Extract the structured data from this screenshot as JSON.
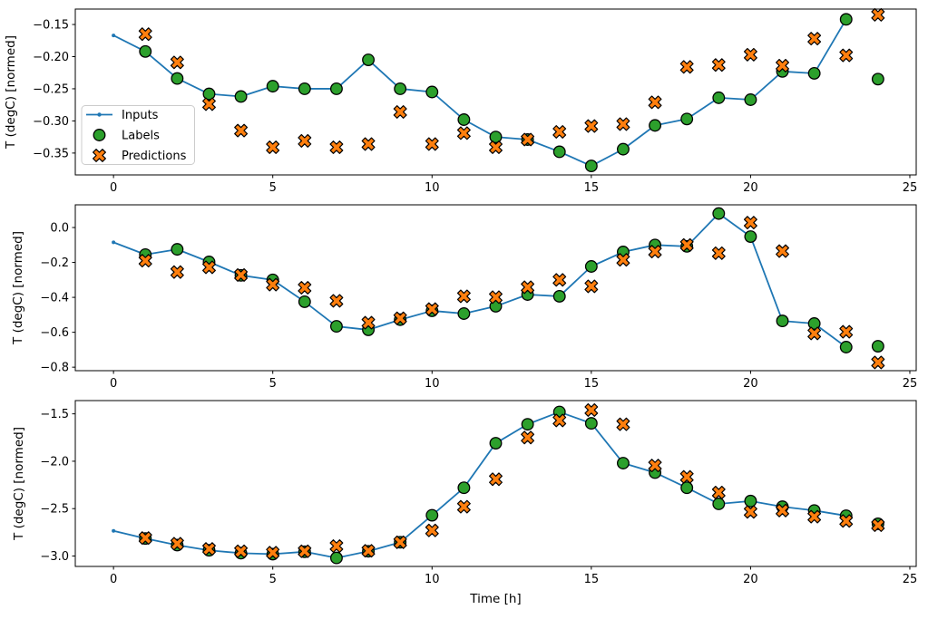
{
  "figure": {
    "background": "#ffffff",
    "xlabel": "Time [h]",
    "xticks": [
      0,
      5,
      10,
      15,
      20,
      25
    ],
    "xticklabels": [
      "0",
      "5",
      "10",
      "15",
      "20",
      "25"
    ],
    "colors": {
      "inputs": "#1f77b4",
      "labels": "#2ca02c",
      "predictions": "#ff7f0e",
      "marker_edge": "#000000",
      "axis": "#000000",
      "text": "#000000"
    },
    "legend": {
      "border_color": "#cccccc",
      "position": "center-left-of-first-subplot",
      "items": [
        {
          "label": "Inputs",
          "marker": "line-with-dot",
          "color": "#1f77b4"
        },
        {
          "label": "Labels",
          "marker": "filled-circle",
          "color": "#2ca02c"
        },
        {
          "label": "Predictions",
          "marker": "filled-x",
          "color": "#ff7f0e"
        }
      ]
    }
  },
  "chart_data": [
    {
      "type": "line",
      "title": "",
      "ylabel": "T (degC) [normed]",
      "xlim": [
        -1.2,
        25.2
      ],
      "ylim": [
        -0.384,
        -0.126
      ],
      "grid": false,
      "show_legend": true,
      "yticks": [
        -0.15,
        -0.2,
        -0.25,
        -0.3,
        -0.35
      ],
      "yticklabels": [
        "−0.15",
        "−0.20",
        "−0.25",
        "−0.30",
        "−0.35"
      ],
      "series": [
        {
          "name": "Inputs",
          "type": "line",
          "x": [
            0,
            1,
            2,
            3,
            4,
            5,
            6,
            7,
            8,
            9,
            10,
            11,
            12,
            13,
            14,
            15,
            16,
            17,
            18,
            19,
            20,
            21,
            22,
            23
          ],
          "y": [
            -0.167,
            -0.192,
            -0.234,
            -0.258,
            -0.262,
            -0.246,
            -0.25,
            -0.25,
            -0.205,
            -0.25,
            -0.255,
            -0.298,
            -0.325,
            -0.329,
            -0.348,
            -0.37,
            -0.344,
            -0.307,
            -0.297,
            -0.264,
            -0.267,
            -0.223,
            -0.226,
            -0.142
          ]
        },
        {
          "name": "Labels",
          "type": "scatter",
          "marker": "circle",
          "x": [
            1,
            2,
            3,
            4,
            5,
            6,
            7,
            8,
            9,
            10,
            11,
            12,
            13,
            14,
            15,
            16,
            17,
            18,
            19,
            20,
            21,
            22,
            23,
            24
          ],
          "y": [
            -0.192,
            -0.234,
            -0.258,
            -0.262,
            -0.246,
            -0.25,
            -0.25,
            -0.205,
            -0.25,
            -0.255,
            -0.298,
            -0.325,
            -0.329,
            -0.348,
            -0.37,
            -0.344,
            -0.307,
            -0.297,
            -0.264,
            -0.267,
            -0.223,
            -0.226,
            -0.142,
            -0.235
          ]
        },
        {
          "name": "Predictions",
          "type": "scatter",
          "marker": "X",
          "x": [
            1,
            2,
            3,
            4,
            5,
            6,
            7,
            8,
            9,
            10,
            11,
            12,
            13,
            14,
            15,
            16,
            17,
            18,
            19,
            20,
            21,
            22,
            23,
            24
          ],
          "y": [
            -0.165,
            -0.209,
            -0.274,
            -0.315,
            -0.341,
            -0.331,
            -0.341,
            -0.336,
            -0.286,
            -0.336,
            -0.319,
            -0.341,
            -0.329,
            -0.317,
            -0.308,
            -0.305,
            -0.271,
            -0.216,
            -0.213,
            -0.197,
            -0.214,
            -0.172,
            -0.198,
            -0.135
          ]
        }
      ]
    },
    {
      "type": "line",
      "title": "",
      "ylabel": "T (degC) [normed]",
      "xlim": [
        -1.2,
        25.2
      ],
      "ylim": [
        -0.82,
        0.13
      ],
      "grid": false,
      "show_legend": false,
      "yticks": [
        0.0,
        -0.2,
        -0.4,
        -0.6,
        -0.8
      ],
      "yticklabels": [
        "0.0",
        "−0.2",
        "−0.4",
        "−0.6",
        "−0.8"
      ],
      "series": [
        {
          "name": "Inputs",
          "type": "line",
          "x": [
            0,
            1,
            2,
            3,
            4,
            5,
            6,
            7,
            8,
            9,
            10,
            11,
            12,
            13,
            14,
            15,
            16,
            17,
            18,
            19,
            20,
            21,
            22,
            23
          ],
          "y": [
            -0.085,
            -0.155,
            -0.125,
            -0.197,
            -0.274,
            -0.3,
            -0.425,
            -0.566,
            -0.586,
            -0.528,
            -0.477,
            -0.493,
            -0.451,
            -0.384,
            -0.394,
            -0.223,
            -0.14,
            -0.1,
            -0.108,
            0.08,
            -0.052,
            -0.535,
            -0.55,
            -0.685
          ]
        },
        {
          "name": "Labels",
          "type": "scatter",
          "marker": "circle",
          "x": [
            1,
            2,
            3,
            4,
            5,
            6,
            7,
            8,
            9,
            10,
            11,
            12,
            13,
            14,
            15,
            16,
            17,
            18,
            19,
            20,
            21,
            22,
            23,
            24
          ],
          "y": [
            -0.155,
            -0.125,
            -0.197,
            -0.274,
            -0.3,
            -0.425,
            -0.566,
            -0.586,
            -0.528,
            -0.477,
            -0.493,
            -0.451,
            -0.384,
            -0.394,
            -0.223,
            -0.14,
            -0.1,
            -0.108,
            0.08,
            -0.052,
            -0.535,
            -0.55,
            -0.685,
            -0.68
          ]
        },
        {
          "name": "Predictions",
          "type": "scatter",
          "marker": "X",
          "x": [
            1,
            2,
            3,
            4,
            5,
            6,
            7,
            8,
            9,
            10,
            11,
            12,
            13,
            14,
            15,
            16,
            17,
            18,
            19,
            20,
            21,
            22,
            23,
            24
          ],
          "y": [
            -0.19,
            -0.255,
            -0.228,
            -0.272,
            -0.327,
            -0.345,
            -0.42,
            -0.545,
            -0.52,
            -0.467,
            -0.394,
            -0.399,
            -0.342,
            -0.3,
            -0.337,
            -0.185,
            -0.138,
            -0.1,
            -0.147,
            0.028,
            -0.135,
            -0.607,
            -0.597,
            -0.773
          ]
        }
      ]
    },
    {
      "type": "line",
      "title": "",
      "ylabel": "T (degC) [normed]",
      "xlabel": "Time [h]",
      "xlim": [
        -1.2,
        25.2
      ],
      "ylim": [
        -3.11,
        -1.36
      ],
      "grid": false,
      "show_legend": false,
      "yticks": [
        -1.5,
        -2.0,
        -2.5,
        -3.0
      ],
      "yticklabels": [
        "−1.5",
        "−2.0",
        "−2.5",
        "−3.0"
      ],
      "series": [
        {
          "name": "Inputs",
          "type": "line",
          "x": [
            0,
            1,
            2,
            3,
            4,
            5,
            6,
            7,
            8,
            9,
            10,
            11,
            12,
            13,
            14,
            15,
            16,
            17,
            18,
            19,
            20,
            21,
            22,
            23
          ],
          "y": [
            -2.735,
            -2.815,
            -2.885,
            -2.94,
            -2.97,
            -2.98,
            -2.955,
            -3.02,
            -2.95,
            -2.855,
            -2.57,
            -2.28,
            -1.81,
            -1.61,
            -1.48,
            -1.6,
            -2.02,
            -2.12,
            -2.28,
            -2.45,
            -2.42,
            -2.48,
            -2.52,
            -2.575
          ]
        },
        {
          "name": "Labels",
          "type": "scatter",
          "marker": "circle",
          "x": [
            1,
            2,
            3,
            4,
            5,
            6,
            7,
            8,
            9,
            10,
            11,
            12,
            13,
            14,
            15,
            16,
            17,
            18,
            19,
            20,
            21,
            22,
            23,
            24
          ],
          "y": [
            -2.815,
            -2.885,
            -2.94,
            -2.97,
            -2.98,
            -2.955,
            -3.02,
            -2.95,
            -2.855,
            -2.57,
            -2.28,
            -1.81,
            -1.61,
            -1.48,
            -1.6,
            -2.02,
            -2.12,
            -2.28,
            -2.45,
            -2.42,
            -2.48,
            -2.52,
            -2.575,
            -2.66
          ]
        },
        {
          "name": "Predictions",
          "type": "scatter",
          "marker": "X",
          "x": [
            1,
            2,
            3,
            4,
            5,
            6,
            7,
            8,
            9,
            10,
            11,
            12,
            13,
            14,
            15,
            16,
            17,
            18,
            19,
            20,
            21,
            22,
            23,
            24
          ],
          "y": [
            -2.81,
            -2.87,
            -2.925,
            -2.95,
            -2.965,
            -2.95,
            -2.895,
            -2.945,
            -2.855,
            -2.73,
            -2.48,
            -2.19,
            -1.75,
            -1.57,
            -1.46,
            -1.61,
            -2.045,
            -2.165,
            -2.33,
            -2.535,
            -2.52,
            -2.585,
            -2.63,
            -2.675
          ]
        }
      ]
    }
  ]
}
